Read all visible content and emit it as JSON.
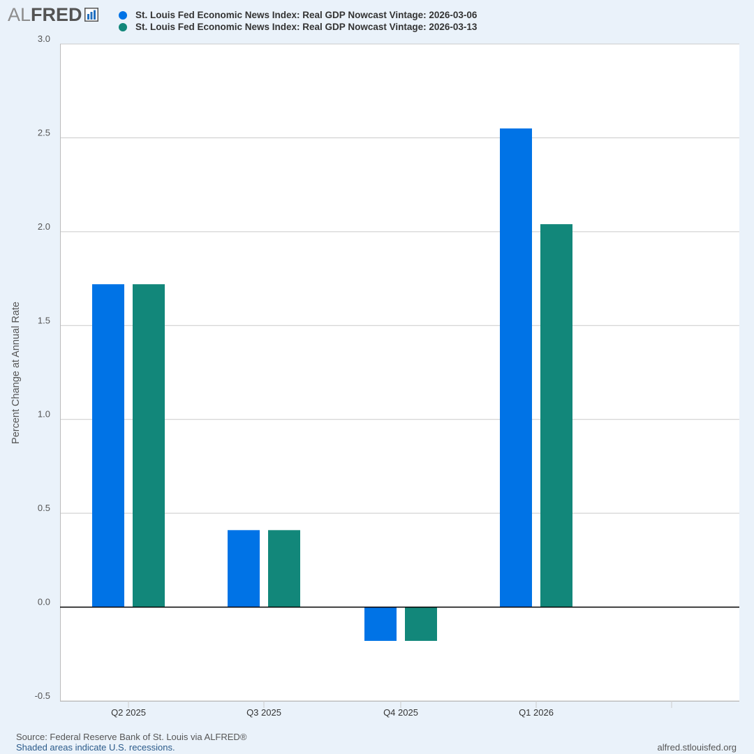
{
  "logo": {
    "prefix": "AL",
    "suffix": "FRED",
    "icon": "bar-chart-icon"
  },
  "footer": {
    "source": "Source: Federal Reserve Bank of St. Louis via ALFRED®",
    "note": "Shaded areas indicate U.S. recessions.",
    "site": "alfred.stlouisfed.org"
  },
  "colors": {
    "background": "#eaf2fa",
    "plot_background": "#ffffff",
    "series_1": "#0073e6",
    "series_2": "#12877a",
    "gridline": "#c9c9c9",
    "zero_line": "#000000"
  },
  "chart_data": {
    "type": "bar",
    "title": "",
    "xlabel": "",
    "ylabel": "Percent Change at Annual Rate",
    "categories": [
      "Q2 2025",
      "Q3 2025",
      "Q4 2025",
      "Q1 2026"
    ],
    "series": [
      {
        "name": "St. Louis Fed Economic News Index: Real GDP Nowcast Vintage: 2026-03-06",
        "color": "#0073e6",
        "values": [
          1.72,
          0.41,
          -0.18,
          2.55
        ]
      },
      {
        "name": "St. Louis Fed Economic News Index: Real GDP Nowcast Vintage: 2026-03-13",
        "color": "#12877a",
        "values": [
          1.72,
          0.41,
          -0.18,
          2.04
        ]
      }
    ],
    "ylim": [
      -0.5,
      3.0
    ],
    "yticks": [
      "-0.5",
      "0.0",
      "0.5",
      "1.0",
      "1.5",
      "2.0",
      "2.5",
      "3.0"
    ],
    "grid": true,
    "legend": "top"
  }
}
